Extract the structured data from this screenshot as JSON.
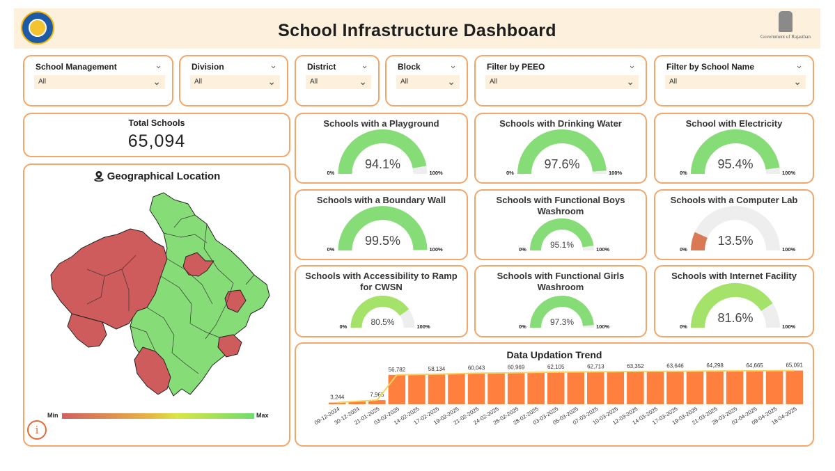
{
  "header": {
    "title": "School Infrastructure Dashboard",
    "right_logo_caption": "Government of Rajasthan",
    "left_logo_icon": "education-department-logo-icon",
    "right_logo_icon": "state-emblem-icon"
  },
  "filters": [
    {
      "label": "School Management",
      "value": "All"
    },
    {
      "label": "Division",
      "value": "All"
    },
    {
      "label": "District",
      "value": "All"
    },
    {
      "label": "Block",
      "value": "All"
    },
    {
      "label": "Filter by PEEO",
      "value": "All"
    },
    {
      "label": "Filter by School Name",
      "value": "All"
    }
  ],
  "total_schools": {
    "label": "Total Schools",
    "value": "65,094"
  },
  "geo": {
    "title": "Geographical Location",
    "icon": "location-pin-icon",
    "legend_min": "Min",
    "legend_max": "Max",
    "info_label": "i",
    "colors": {
      "low": "#cf5c5c",
      "high": "#86dc76"
    }
  },
  "gauges": [
    {
      "title": "Schools with a Playground",
      "value": 94.1,
      "display": "94.1%",
      "min": "0%",
      "max": "100%",
      "color": "#86dc76"
    },
    {
      "title": "Schools with Drinking Water",
      "value": 97.6,
      "display": "97.6%",
      "min": "0%",
      "max": "100%",
      "color": "#86dc76"
    },
    {
      "title": "School with Electricity",
      "value": 95.4,
      "display": "95.4%",
      "min": "0%",
      "max": "100%",
      "color": "#86dc76"
    },
    {
      "title": "Schools with a Boundary Wall",
      "value": 99.5,
      "display": "99.5%",
      "min": "0%",
      "max": "100%",
      "color": "#86dc76"
    },
    {
      "title": "Schools with Functional Boys Washroom",
      "value": 95.1,
      "display": "95.1%",
      "min": "0%",
      "max": "100%",
      "color": "#86dc76"
    },
    {
      "title": "Schools with a Computer Lab",
      "value": 13.5,
      "display": "13.5%",
      "min": "0%",
      "max": "100%",
      "color": "#d97a54"
    },
    {
      "title": "Schools with Accessibility to Ramp for CWSN",
      "value": 80.5,
      "display": "80.5%",
      "min": "0%",
      "max": "100%",
      "color": "#a5e26a"
    },
    {
      "title": "Schools with Functional Girls Washroom",
      "value": 97.3,
      "display": "97.3%",
      "min": "0%",
      "max": "100%",
      "color": "#86dc76"
    },
    {
      "title": "Schools with Internet Facility",
      "value": 81.6,
      "display": "81.6%",
      "min": "0%",
      "max": "100%",
      "color": "#a5e26a"
    }
  ],
  "trend": {
    "title": "Data Updation Trend",
    "bar_color": "#ff7f3f",
    "line_color": "#f4d35e"
  },
  "chart_data": {
    "type": "bar",
    "title": "Data Updation Trend",
    "categories": [
      "09-12-2024",
      "30-12-2024",
      "21-01-2025",
      "03-02-2025",
      "14-02-2025",
      "17-02-2025",
      "19-02-2025",
      "21-02-2025",
      "24-02-2025",
      "26-02-2025",
      "28-02-2025",
      "03-03-2025",
      "05-03-2025",
      "07-03-2025",
      "10-03-2025",
      "12-03-2025",
      "14-03-2025",
      "17-03-2025",
      "19-03-2025",
      "21-03-2025",
      "26-03-2025",
      "02-04-2025",
      "09-04-2025",
      "16-04-2025"
    ],
    "values": [
      3244,
      5600,
      7965,
      56782,
      57500,
      58134,
      59100,
      60043,
      60500,
      60969,
      61500,
      62105,
      62400,
      62713,
      63000,
      63352,
      63500,
      63646,
      64000,
      64298,
      64500,
      64665,
      64900,
      65091
    ],
    "data_labels": [
      "3,244",
      "",
      "7,965",
      "56,782",
      "",
      "58,134",
      "",
      "60,043",
      "",
      "60,969",
      "",
      "62,105",
      "",
      "62,713",
      "",
      "63,352",
      "",
      "63,646",
      "",
      "64,298",
      "",
      "64,665",
      "",
      "65,091"
    ],
    "ylim": [
      0,
      70000
    ]
  }
}
